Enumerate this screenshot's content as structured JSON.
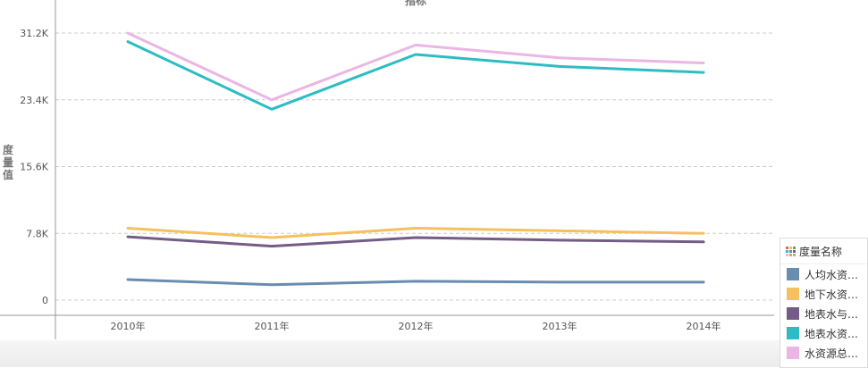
{
  "chart_data": {
    "type": "line",
    "title": "指标",
    "xlabel": "",
    "ylabel": "度量值",
    "categories": [
      "2010年",
      "2011年",
      "2012年",
      "2013年",
      "2014年"
    ],
    "yticks": [
      0,
      7800,
      15600,
      23400,
      31200
    ],
    "ytick_labels": [
      "0",
      "7.8K",
      "15.6K",
      "23.4K",
      "31.2K"
    ],
    "ylim": [
      -3000,
      35000
    ],
    "grid": true,
    "legend_position": "bottom-right",
    "series": [
      {
        "name": "人均水资源...",
        "color": "#6a8caf",
        "values": [
          2400,
          1800,
          2200,
          2100,
          2100
        ]
      },
      {
        "name": "地下水资源...",
        "color": "#f5c15e",
        "values": [
          8400,
          7300,
          8400,
          8100,
          7800
        ]
      },
      {
        "name": "地表水与地...",
        "color": "#755c86",
        "values": [
          7400,
          6300,
          7300,
          7000,
          6800
        ]
      },
      {
        "name": "地表水资源...",
        "color": "#2dbcc4",
        "values": [
          30200,
          22300,
          28700,
          27300,
          26600
        ]
      },
      {
        "name": "水资源总量...",
        "color": "#ebb5e4",
        "values": [
          31200,
          23400,
          29800,
          28300,
          27700
        ]
      }
    ]
  },
  "legend": {
    "title": "度量名称",
    "icon_colors": [
      "#e8615a",
      "#f5c15e",
      "#5fa55a",
      "#2dbcc4",
      "#6a8caf",
      "#755c86",
      "#ebb5e4",
      "#f59d4a",
      "#9cc76b"
    ]
  }
}
